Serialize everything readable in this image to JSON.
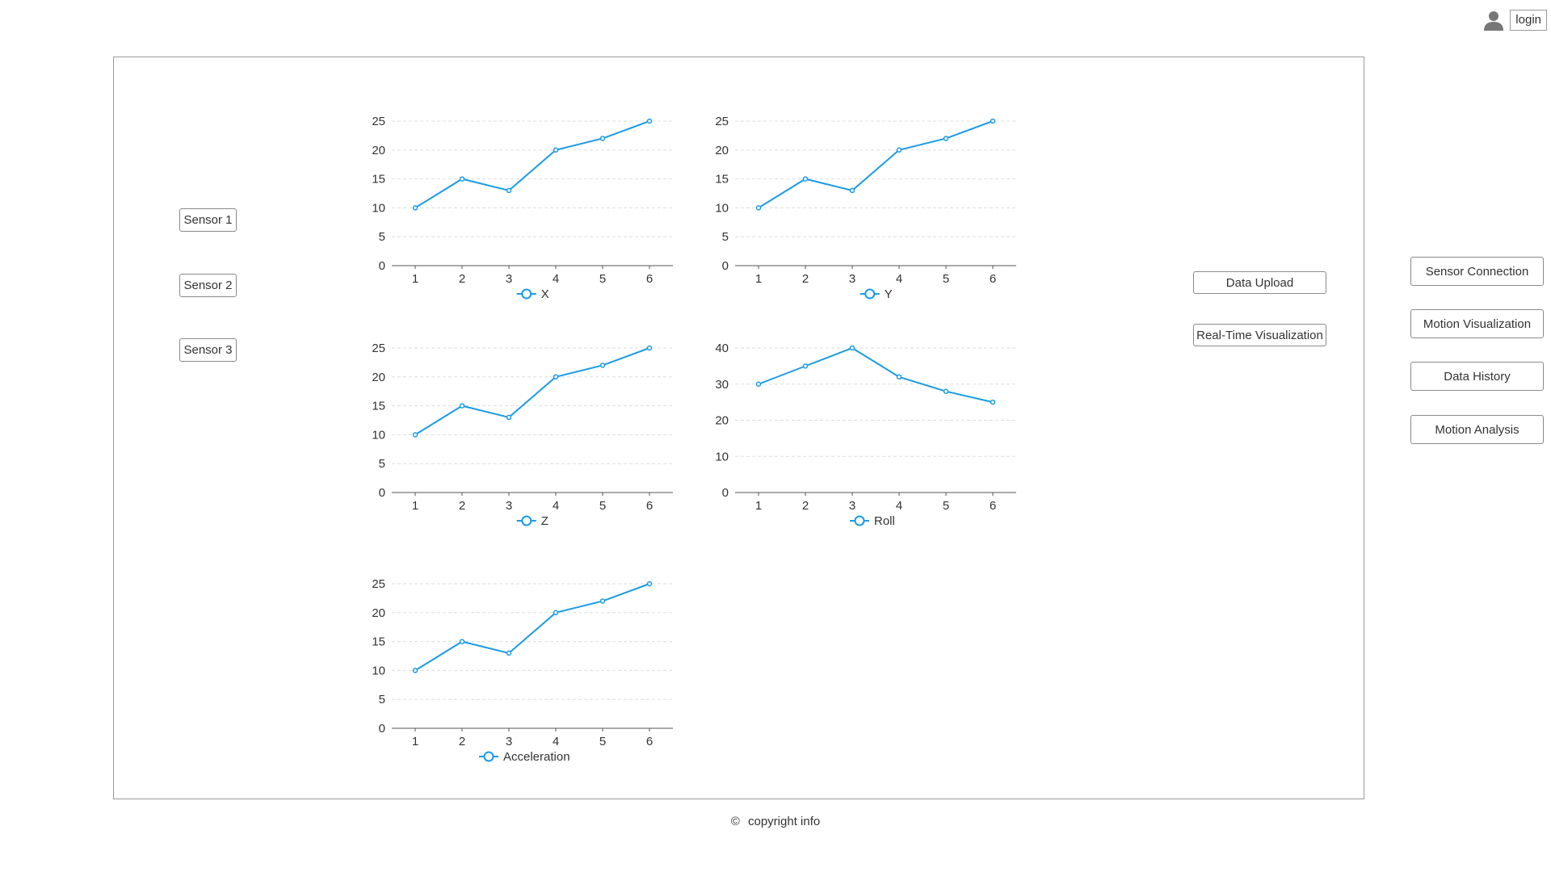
{
  "header": {
    "login_label": "login",
    "user_icon": "user-icon"
  },
  "sensors": {
    "items": [
      {
        "label": "Sensor 1"
      },
      {
        "label": "Sensor 2"
      },
      {
        "label": "Sensor 3"
      }
    ]
  },
  "actions": {
    "data_upload_label": "Data Upload",
    "realtime_label": "Real-Time Visualization"
  },
  "nav": {
    "items": [
      {
        "label": "Sensor Connection"
      },
      {
        "label": "Motion Visualization"
      },
      {
        "label": "Data History"
      },
      {
        "label": "Motion Analysis"
      }
    ]
  },
  "footer": {
    "copyright_symbol": "©",
    "copyright_text": "copyright info"
  },
  "colors": {
    "series": "#1a9be6",
    "grid": "#dddddd",
    "axis": "#555555"
  },
  "chart_data": [
    {
      "type": "line",
      "x": [
        1,
        2,
        3,
        4,
        5,
        6
      ],
      "series": [
        {
          "name": "X",
          "values": [
            10,
            15,
            13,
            20,
            22,
            25
          ]
        }
      ],
      "ylim": [
        0,
        25
      ],
      "yticks": [
        0,
        5,
        10,
        15,
        20,
        25
      ],
      "grid": true,
      "legend": "bottom"
    },
    {
      "type": "line",
      "x": [
        1,
        2,
        3,
        4,
        5,
        6
      ],
      "series": [
        {
          "name": "Y",
          "values": [
            10,
            15,
            13,
            20,
            22,
            25
          ]
        }
      ],
      "ylim": [
        0,
        25
      ],
      "yticks": [
        0,
        5,
        10,
        15,
        20,
        25
      ],
      "grid": true,
      "legend": "bottom"
    },
    {
      "type": "line",
      "x": [
        1,
        2,
        3,
        4,
        5,
        6
      ],
      "series": [
        {
          "name": "Z",
          "values": [
            10,
            15,
            13,
            20,
            22,
            25
          ]
        }
      ],
      "ylim": [
        0,
        25
      ],
      "yticks": [
        0,
        5,
        10,
        15,
        20,
        25
      ],
      "grid": true,
      "legend": "bottom"
    },
    {
      "type": "line",
      "x": [
        1,
        2,
        3,
        4,
        5,
        6
      ],
      "series": [
        {
          "name": "Roll",
          "values": [
            30,
            35,
            40,
            32,
            28,
            25
          ]
        }
      ],
      "ylim": [
        0,
        40
      ],
      "yticks": [
        0,
        10,
        20,
        30,
        40
      ],
      "grid": true,
      "legend": "bottom"
    },
    {
      "type": "line",
      "x": [
        1,
        2,
        3,
        4,
        5,
        6
      ],
      "series": [
        {
          "name": "Acceleration",
          "values": [
            10,
            15,
            13,
            20,
            22,
            25
          ]
        }
      ],
      "ylim": [
        0,
        25
      ],
      "yticks": [
        0,
        5,
        10,
        15,
        20,
        25
      ],
      "grid": true,
      "legend": "bottom"
    }
  ]
}
